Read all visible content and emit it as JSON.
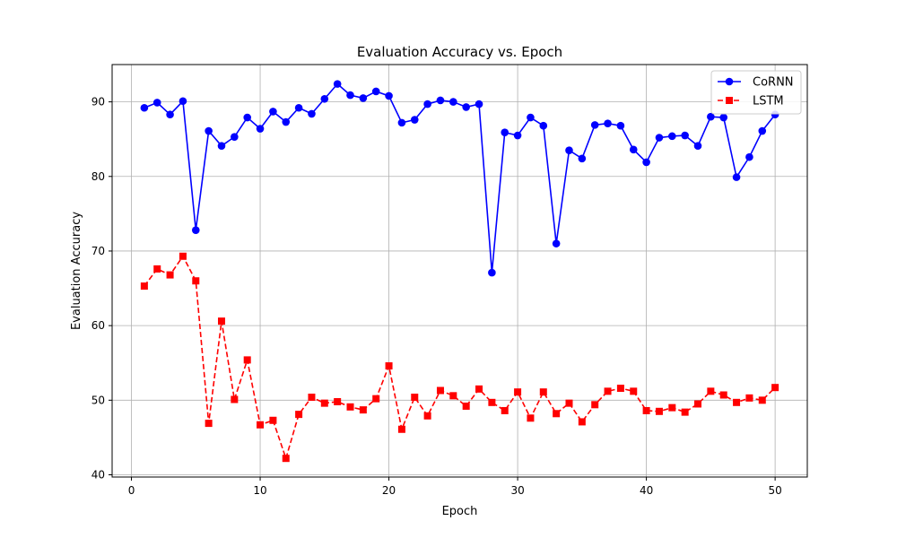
{
  "chart_data": {
    "type": "line",
    "title": "Evaluation Accuracy vs. Epoch",
    "xlabel": "Epoch",
    "ylabel": "Evaluation Accuracy",
    "xlim": [
      -1.5,
      52.5
    ],
    "ylim": [
      39.7,
      95
    ],
    "xticks": [
      0,
      10,
      20,
      30,
      40,
      50
    ],
    "yticks": [
      40,
      50,
      60,
      70,
      80,
      90
    ],
    "grid": true,
    "legend_position": "top-right",
    "x": [
      1,
      2,
      3,
      4,
      5,
      6,
      7,
      8,
      9,
      10,
      11,
      12,
      13,
      14,
      15,
      16,
      17,
      18,
      19,
      20,
      21,
      22,
      23,
      24,
      25,
      26,
      27,
      28,
      29,
      30,
      31,
      32,
      33,
      34,
      35,
      36,
      37,
      38,
      39,
      40,
      41,
      42,
      43,
      44,
      45,
      46,
      47,
      48,
      49,
      50
    ],
    "series": [
      {
        "name": "CoRNN",
        "color": "#0000ff",
        "marker": "circle",
        "line_style": "solid",
        "values": [
          89.2,
          89.9,
          88.3,
          90.1,
          72.8,
          86.1,
          84.1,
          85.3,
          87.9,
          86.4,
          88.7,
          87.3,
          89.2,
          88.4,
          90.4,
          92.4,
          90.9,
          90.5,
          91.4,
          90.8,
          87.2,
          87.6,
          89.7,
          90.2,
          90.0,
          89.3,
          89.7,
          67.1,
          85.9,
          85.5,
          87.9,
          86.8,
          71.0,
          83.5,
          82.4,
          86.9,
          87.1,
          86.8,
          83.6,
          81.9,
          85.2,
          85.4,
          85.5,
          84.1,
          88.0,
          87.9,
          79.9,
          82.6,
          86.1,
          88.3
        ]
      },
      {
        "name": "LSTM",
        "color": "#ff0000",
        "marker": "square",
        "line_style": "dashed",
        "values": [
          65.3,
          67.6,
          66.8,
          69.3,
          66.0,
          46.9,
          60.6,
          50.1,
          55.4,
          46.7,
          47.3,
          42.2,
          48.1,
          50.4,
          49.6,
          49.8,
          49.1,
          48.7,
          50.2,
          54.6,
          46.1,
          50.4,
          47.9,
          51.3,
          50.6,
          49.2,
          51.5,
          49.7,
          48.6,
          51.1,
          47.6,
          51.1,
          48.2,
          49.6,
          47.1,
          49.4,
          51.2,
          51.6,
          51.2,
          48.6,
          48.5,
          49.0,
          48.4,
          49.5,
          51.2,
          50.7,
          49.7,
          50.3,
          50.0,
          51.7
        ]
      }
    ]
  }
}
